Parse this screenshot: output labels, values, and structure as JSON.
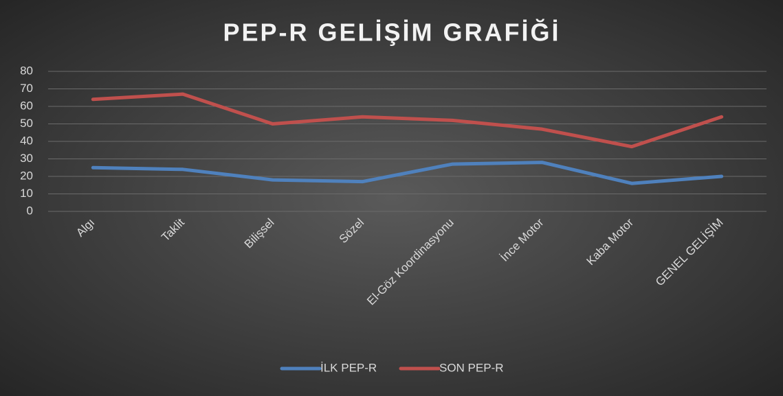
{
  "chart_data": {
    "type": "line",
    "title": "PEP-R GELİŞİM GRAFİĞİ",
    "categories": [
      "Algı",
      "Taklit",
      "Bilişsel",
      "Sözel",
      "El-Göz Koordinasyonu",
      "İnce Motor",
      "Kaba Motor",
      "GENEL GELİŞİM"
    ],
    "series": [
      {
        "name": "İLK PEP-R",
        "color": "#4f81bd",
        "values": [
          25,
          24,
          18,
          17,
          27,
          28,
          16,
          20
        ]
      },
      {
        "name": "SON PEP-R",
        "color": "#c0504d",
        "values": [
          64,
          67,
          50,
          54,
          52,
          47,
          37,
          54
        ]
      }
    ],
    "ylim": [
      0,
      80
    ],
    "yticks": [
      0,
      10,
      20,
      30,
      40,
      50,
      60,
      70,
      80
    ],
    "grid": true,
    "legend": "bottom"
  }
}
